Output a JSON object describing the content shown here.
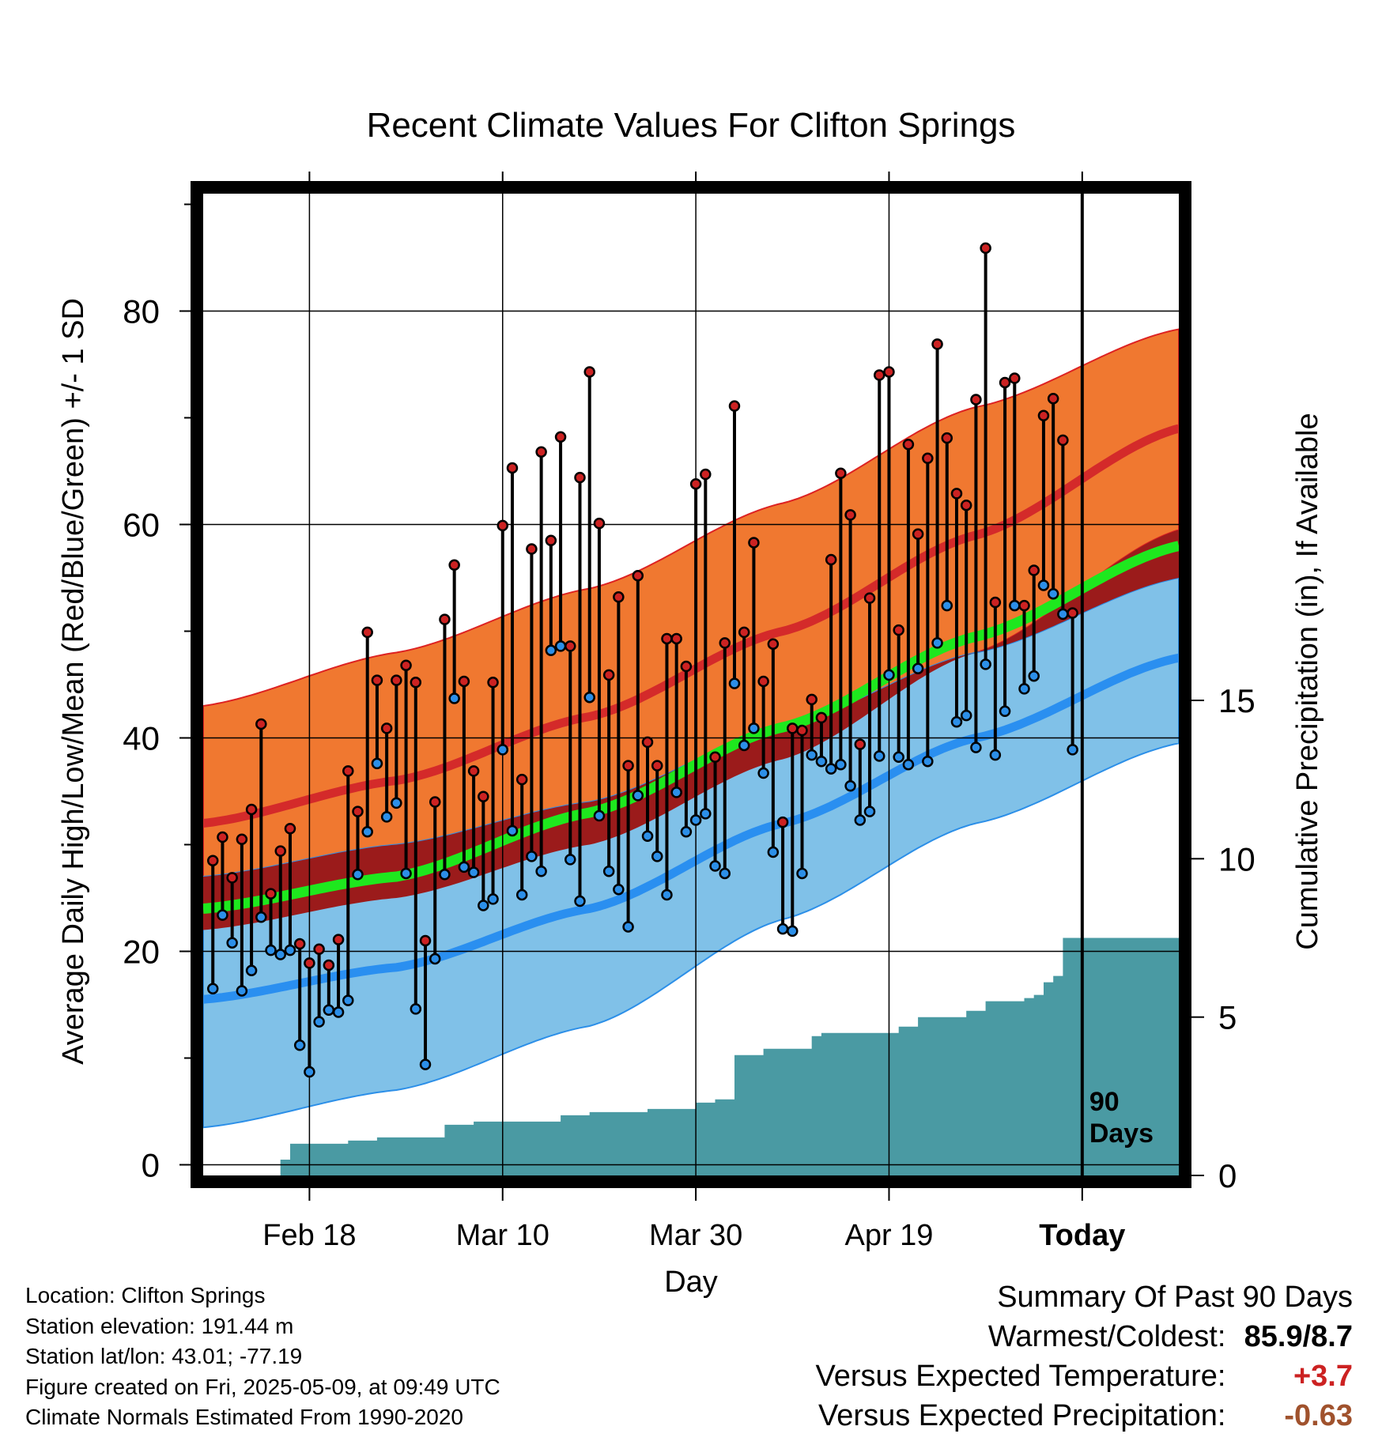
{
  "chart_data": {
    "type": "line",
    "title": "Recent Climate Values For Clifton Springs",
    "xlabel": "Day",
    "ylabel": "Average Daily High/Low/Mean (Red/Blue/Green) +/- 1 SD",
    "y2label": "Cumulative Precipitation (in), If Available",
    "x_range": [
      "2025-02-07",
      "2025-05-19"
    ],
    "ylim": [
      -1,
      91
    ],
    "y2lim": [
      0,
      31
    ],
    "grid": true,
    "x_ticks": [
      {
        "date": "2025-02-18",
        "label": "Feb 18"
      },
      {
        "date": "2025-03-10",
        "label": "Mar 10"
      },
      {
        "date": "2025-03-30",
        "label": "Mar 30"
      },
      {
        "date": "2025-04-19",
        "label": "Apr 19"
      },
      {
        "date": "2025-05-09",
        "label": "Today"
      }
    ],
    "y_ticks": [
      0,
      20,
      40,
      60,
      80
    ],
    "y2_ticks": [
      0,
      5,
      10,
      15
    ],
    "today_marker": {
      "date": "2025-05-09",
      "label_line1": "90",
      "label_line2": "Days"
    },
    "normals": {
      "dates": [
        "2025-02-07",
        "2025-02-27",
        "2025-03-19",
        "2025-04-08",
        "2025-04-28",
        "2025-05-19"
      ],
      "high_mean": [
        32,
        36,
        42,
        50,
        59,
        69
      ],
      "high_upper": [
        43,
        48,
        54,
        62,
        71,
        78.3
      ],
      "high_lower": [
        22,
        25,
        30,
        38,
        48,
        59.5
      ],
      "low_mean": [
        15.5,
        18.5,
        24,
        32,
        40,
        47.5
      ],
      "low_upper": [
        27,
        30,
        34,
        41,
        48,
        55
      ],
      "low_lower": [
        3.5,
        7,
        13,
        23,
        32,
        39.5
      ],
      "mean": [
        24,
        27,
        33,
        41,
        49.5,
        58
      ]
    },
    "series": [
      {
        "name": "Daily High",
        "color": "#cc2222",
        "values": [
          28.5,
          30.7,
          26.9,
          30.5,
          33.3,
          41.3,
          25.4,
          29.4,
          31.5,
          20.7,
          18.9,
          20.2,
          18.7,
          21.1,
          36.9,
          33.1,
          49.9,
          45.4,
          40.9,
          45.4,
          46.8,
          45.2,
          21.0,
          34.0,
          51.1,
          56.2,
          45.3,
          36.9,
          34.5,
          45.2,
          59.9,
          65.3,
          36.1,
          57.7,
          66.8,
          58.5,
          68.2,
          48.6,
          64.4,
          74.3,
          60.1,
          45.9,
          53.2,
          37.4,
          55.2,
          39.6,
          37.4,
          49.3,
          49.3,
          46.7,
          63.8,
          64.7,
          38.2,
          48.9,
          71.1,
          49.9,
          58.3,
          45.3,
          48.8,
          32.1,
          40.9,
          40.7,
          43.6,
          41.9,
          56.7,
          64.8,
          60.9,
          39.4,
          53.1,
          74.0,
          74.3,
          50.1,
          67.5,
          59.1,
          66.2,
          76.9,
          68.1,
          62.9,
          61.8,
          71.7,
          85.9,
          52.7,
          73.3,
          73.7,
          52.4,
          55.7,
          70.2,
          71.8,
          67.9,
          51.7
        ]
      },
      {
        "name": "Daily Low",
        "color": "#2c8fe8",
        "values": [
          16.5,
          23.4,
          20.8,
          16.3,
          18.2,
          23.2,
          20.1,
          19.7,
          20.1,
          11.2,
          8.7,
          13.4,
          14.5,
          14.3,
          15.4,
          27.2,
          31.2,
          37.6,
          32.6,
          33.9,
          27.3,
          14.6,
          9.4,
          19.3,
          27.2,
          43.7,
          27.9,
          27.4,
          24.3,
          24.9,
          38.9,
          31.3,
          25.3,
          28.9,
          27.5,
          48.2,
          48.6,
          28.6,
          24.7,
          43.8,
          32.7,
          27.5,
          25.8,
          22.3,
          34.6,
          30.8,
          28.9,
          25.3,
          34.9,
          31.2,
          32.3,
          32.9,
          28.0,
          27.3,
          45.1,
          39.3,
          40.9,
          36.7,
          29.3,
          22.1,
          21.9,
          27.3,
          38.4,
          37.8,
          37.1,
          37.5,
          35.5,
          32.3,
          33.1,
          38.3,
          45.9,
          38.2,
          37.5,
          46.5,
          37.8,
          48.9,
          52.4,
          41.5,
          42.1,
          39.1,
          46.9,
          38.4,
          42.5,
          52.4,
          44.6,
          45.8,
          54.3,
          53.5,
          51.6,
          38.9
        ]
      }
    ],
    "precipitation": {
      "name": "Cumulative Precipitation",
      "color": "#4a9aa3",
      "dates": [
        "2025-02-07",
        "2025-02-14",
        "2025-02-15",
        "2025-02-16",
        "2025-02-18",
        "2025-02-22",
        "2025-02-25",
        "2025-02-26",
        "2025-03-04",
        "2025-03-07",
        "2025-03-13",
        "2025-03-16",
        "2025-03-19",
        "2025-03-25",
        "2025-03-27",
        "2025-03-30",
        "2025-04-01",
        "2025-04-03",
        "2025-04-04",
        "2025-04-06",
        "2025-04-10",
        "2025-04-11",
        "2025-04-12",
        "2025-04-19",
        "2025-04-20",
        "2025-04-22",
        "2025-04-25",
        "2025-04-27",
        "2025-04-29",
        "2025-05-01",
        "2025-05-03",
        "2025-05-04",
        "2025-05-05",
        "2025-05-06",
        "2025-05-07",
        "2025-05-19"
      ],
      "values": [
        0,
        0,
        0.5,
        1.0,
        1.0,
        1.1,
        1.2,
        1.2,
        1.6,
        1.7,
        1.7,
        1.9,
        2.0,
        2.1,
        2.1,
        2.3,
        2.4,
        3.8,
        3.8,
        4.0,
        4.0,
        4.4,
        4.5,
        4.5,
        4.7,
        5.0,
        5.0,
        5.2,
        5.5,
        5.5,
        5.6,
        5.7,
        6.1,
        6.3,
        7.5,
        7.9
      ]
    }
  },
  "info": {
    "location": "Location: Clifton Springs",
    "elevation": "Station elevation: 191.44 m",
    "latlon": "Station lat/lon: 43.01; -77.19",
    "created": "Figure created on Fri, 2025-05-09, at 09:49 UTC",
    "normals": "Climate Normals Estimated From 1990-2020"
  },
  "summary": {
    "heading": "Summary Of Past 90 Days",
    "warmest_label": "Warmest/Coldest:",
    "warmest_value": "85.9/8.7",
    "temp_label": "Versus Expected Temperature:",
    "temp_value": "+3.7",
    "temp_color": "#cc2222",
    "precip_label": "Versus Expected Precipitation:",
    "precip_value": "-0.63",
    "precip_color": "#a0522d"
  }
}
